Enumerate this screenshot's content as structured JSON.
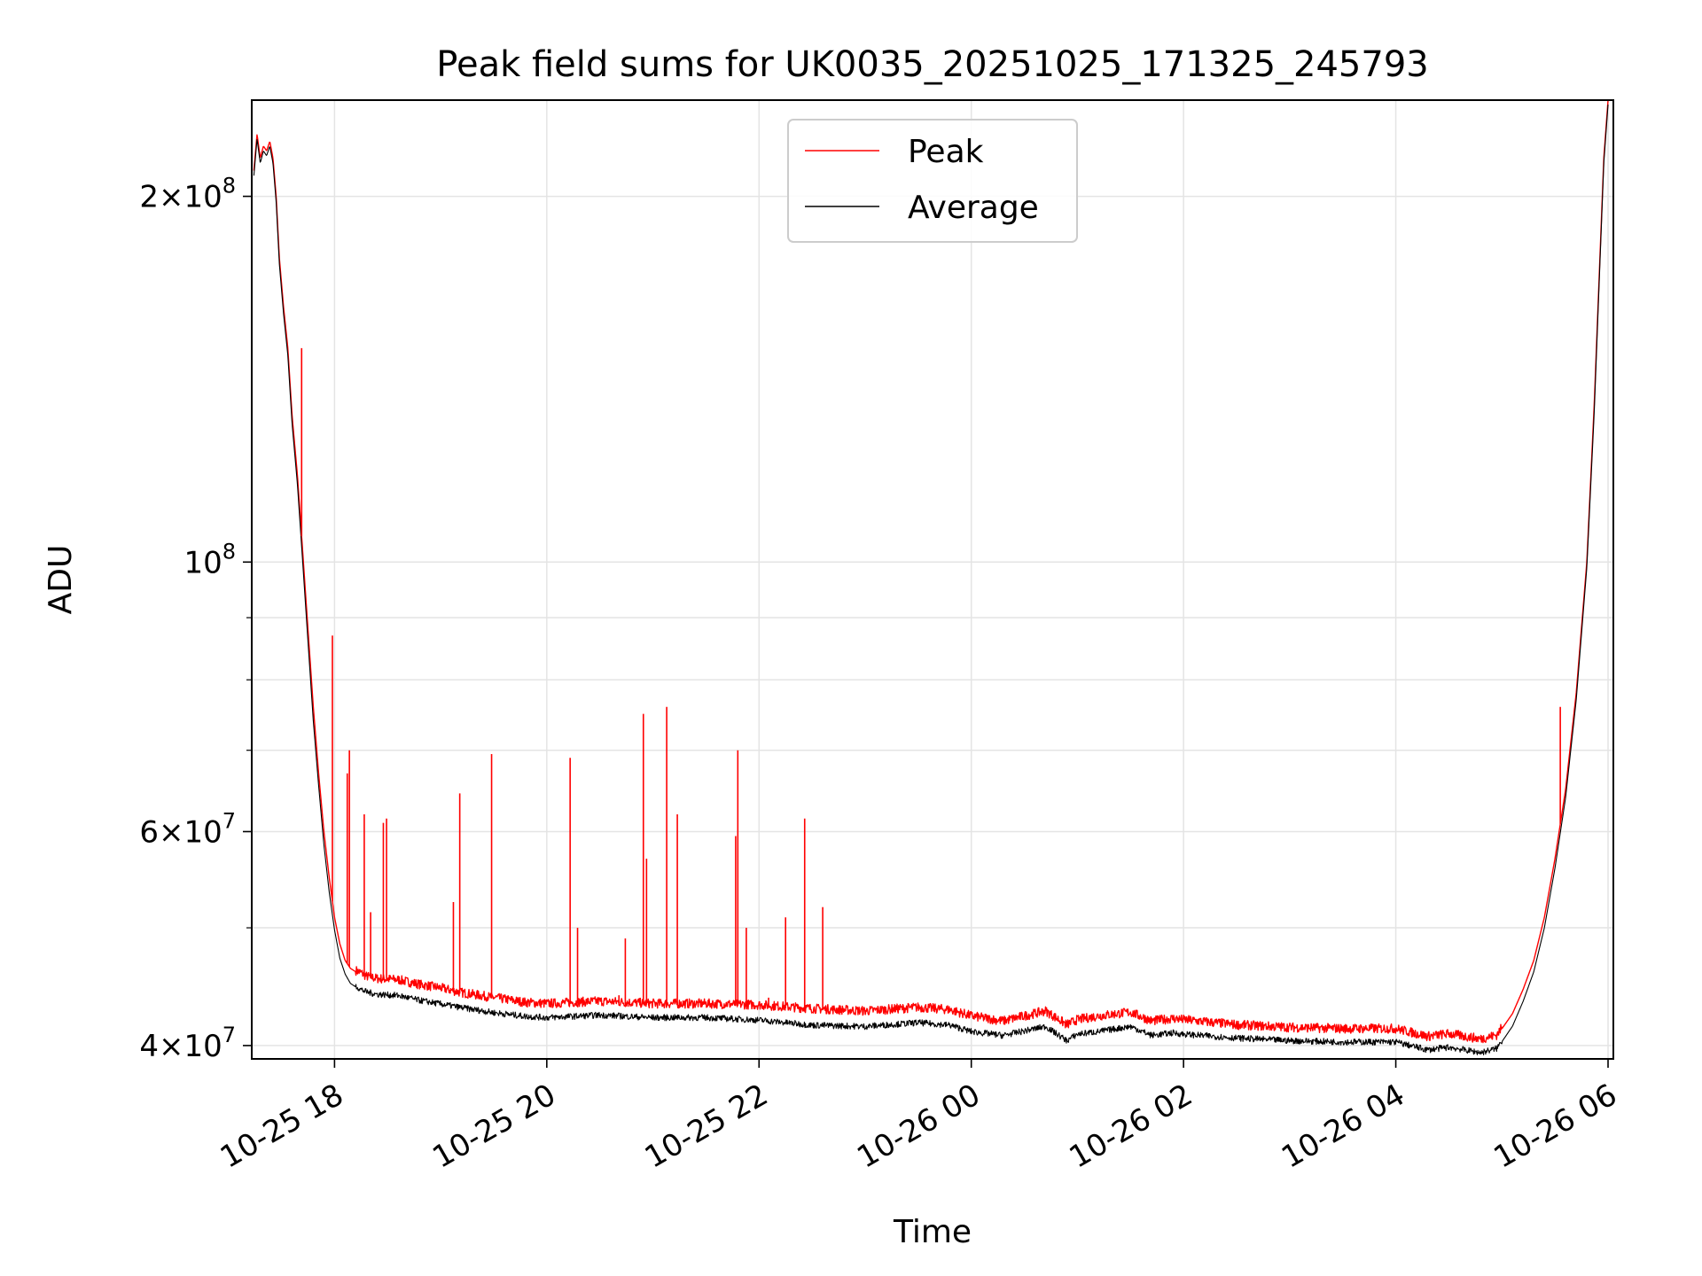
{
  "chart_data": {
    "type": "line",
    "title": "Peak field sums for UK0035_20251025_171325_245793",
    "xlabel": "Time",
    "ylabel": "ADU",
    "yscale": "log",
    "grid": true,
    "legend": "upper center",
    "xlim_hours": [
      -0.78,
      12.05
    ],
    "ylim": [
      39000000,
      240000000
    ],
    "x_ticks": [
      {
        "hour": 0,
        "label": "10-25 18"
      },
      {
        "hour": 2,
        "label": "10-25 20"
      },
      {
        "hour": 4,
        "label": "10-25 22"
      },
      {
        "hour": 6,
        "label": "10-26 00"
      },
      {
        "hour": 8,
        "label": "10-26 02"
      },
      {
        "hour": 10,
        "label": "10-26 04"
      },
      {
        "hour": 12,
        "label": "10-26 06"
      }
    ],
    "y_ticks": [
      {
        "value": 40000000,
        "base": "4",
        "exp": "7"
      },
      {
        "value": 60000000,
        "base": "6",
        "exp": "7"
      },
      {
        "value": 100000000,
        "base": "",
        "exp": "8"
      },
      {
        "value": 200000000,
        "base": "2",
        "exp": "8"
      }
    ],
    "y_minor_ticks": [
      50000000,
      70000000,
      80000000,
      90000000
    ],
    "series": [
      {
        "name": "Peak",
        "color": "#ff0000",
        "x": [
          -0.76,
          -0.73,
          -0.7,
          -0.67,
          -0.64,
          -0.61,
          -0.58,
          -0.55,
          -0.52,
          -0.48,
          -0.44,
          -0.4,
          -0.35,
          -0.3,
          -0.25,
          -0.2,
          -0.15,
          -0.1,
          -0.05,
          0.0,
          0.05,
          0.1,
          0.15,
          0.2,
          0.25,
          0.3,
          0.4,
          0.6,
          0.8,
          1.0,
          1.2,
          1.5,
          1.8,
          2.0,
          2.5,
          3.0,
          3.5,
          4.0,
          4.5,
          5.0,
          5.5,
          5.8,
          6.0,
          6.3,
          6.7,
          6.9,
          7.0,
          7.2,
          7.5,
          7.7,
          7.9,
          8.0,
          8.5,
          9.0,
          9.5,
          10.0,
          10.3,
          10.5,
          10.8,
          10.95,
          11.1,
          11.2,
          11.3,
          11.4,
          11.5,
          11.6,
          11.7,
          11.8,
          11.87,
          11.92,
          11.96,
          12.0
        ],
        "values": [
          210000000,
          225000000,
          215000000,
          220000000,
          218000000,
          222000000,
          215000000,
          200000000,
          178000000,
          162000000,
          150000000,
          132000000,
          118000000,
          102000000,
          88000000,
          76000000,
          67000000,
          60000000,
          55000000,
          51000000,
          48500000,
          47000000,
          46300000,
          46000000,
          45800000,
          45500000,
          45300000,
          45200000,
          44800000,
          44500000,
          44100000,
          43700000,
          43300000,
          43200000,
          43400000,
          43200000,
          43200000,
          43100000,
          42800000,
          42600000,
          42900000,
          42700000,
          42200000,
          41800000,
          42600000,
          41500000,
          41900000,
          42200000,
          42500000,
          41800000,
          42000000,
          41900000,
          41500000,
          41300000,
          41200000,
          41200000,
          40600000,
          40800000,
          40400000,
          40700000,
          42500000,
          44500000,
          47000000,
          51000000,
          57000000,
          65000000,
          78000000,
          100000000,
          135000000,
          175000000,
          215000000,
          240000000
        ]
      },
      {
        "name": "Average",
        "color": "#000000",
        "x": [
          -0.76,
          -0.73,
          -0.7,
          -0.67,
          -0.64,
          -0.61,
          -0.58,
          -0.55,
          -0.52,
          -0.48,
          -0.44,
          -0.4,
          -0.35,
          -0.3,
          -0.25,
          -0.2,
          -0.15,
          -0.1,
          -0.05,
          0.0,
          0.05,
          0.1,
          0.15,
          0.2,
          0.25,
          0.3,
          0.4,
          0.6,
          0.8,
          1.0,
          1.2,
          1.5,
          1.8,
          2.0,
          2.5,
          3.0,
          3.5,
          4.0,
          4.5,
          5.0,
          5.5,
          5.8,
          6.0,
          6.3,
          6.7,
          6.9,
          7.0,
          7.2,
          7.5,
          7.7,
          7.9,
          8.0,
          8.5,
          9.0,
          9.5,
          10.0,
          10.3,
          10.5,
          10.8,
          10.95,
          11.1,
          11.2,
          11.3,
          11.4,
          11.5,
          11.6,
          11.7,
          11.8,
          11.87,
          11.92,
          11.96,
          12.0
        ],
        "values": [
          208000000,
          223000000,
          213000000,
          218000000,
          216000000,
          220000000,
          213000000,
          198000000,
          176000000,
          160000000,
          148000000,
          130000000,
          116000000,
          100000000,
          86000000,
          74000000,
          65500000,
          58500000,
          53500000,
          49800000,
          47200000,
          45800000,
          45000000,
          44700000,
          44400000,
          44200000,
          44000000,
          43900000,
          43500000,
          43200000,
          42900000,
          42500000,
          42200000,
          42100000,
          42300000,
          42100000,
          42100000,
          41900000,
          41500000,
          41400000,
          41700000,
          41500000,
          41000000,
          40700000,
          41400000,
          40300000,
          40800000,
          41000000,
          41400000,
          40700000,
          40900000,
          40800000,
          40500000,
          40300000,
          40200000,
          40200000,
          39600000,
          39800000,
          39400000,
          39700000,
          41500000,
          43500000,
          46000000,
          50000000,
          56000000,
          64000000,
          77000000,
          99000000,
          133000000,
          173000000,
          213000000,
          238000000
        ]
      }
    ],
    "peak_spikes": [
      {
        "hour": -0.31,
        "value": 150000000
      },
      {
        "hour": -0.02,
        "value": 87000000
      },
      {
        "hour": 0.12,
        "value": 67000000
      },
      {
        "hour": 0.14,
        "value": 70000000
      },
      {
        "hour": 0.28,
        "value": 62000000
      },
      {
        "hour": 0.34,
        "value": 51500000
      },
      {
        "hour": 0.46,
        "value": 61000000
      },
      {
        "hour": 0.49,
        "value": 61500000
      },
      {
        "hour": 1.12,
        "value": 52500000
      },
      {
        "hour": 1.18,
        "value": 64500000
      },
      {
        "hour": 1.48,
        "value": 69500000
      },
      {
        "hour": 2.22,
        "value": 69000000
      },
      {
        "hour": 2.29,
        "value": 50000000
      },
      {
        "hour": 2.68,
        "value": 44000000
      },
      {
        "hour": 2.74,
        "value": 49000000
      },
      {
        "hour": 2.91,
        "value": 75000000
      },
      {
        "hour": 2.94,
        "value": 57000000
      },
      {
        "hour": 3.13,
        "value": 76000000
      },
      {
        "hour": 3.23,
        "value": 62000000
      },
      {
        "hour": 3.78,
        "value": 59500000
      },
      {
        "hour": 3.8,
        "value": 70000000
      },
      {
        "hour": 3.88,
        "value": 50000000
      },
      {
        "hour": 4.09,
        "value": 43800000
      },
      {
        "hour": 4.25,
        "value": 51000000
      },
      {
        "hour": 4.43,
        "value": 61500000
      },
      {
        "hour": 4.6,
        "value": 52000000
      },
      {
        "hour": 11.55,
        "value": 76000000
      }
    ]
  }
}
